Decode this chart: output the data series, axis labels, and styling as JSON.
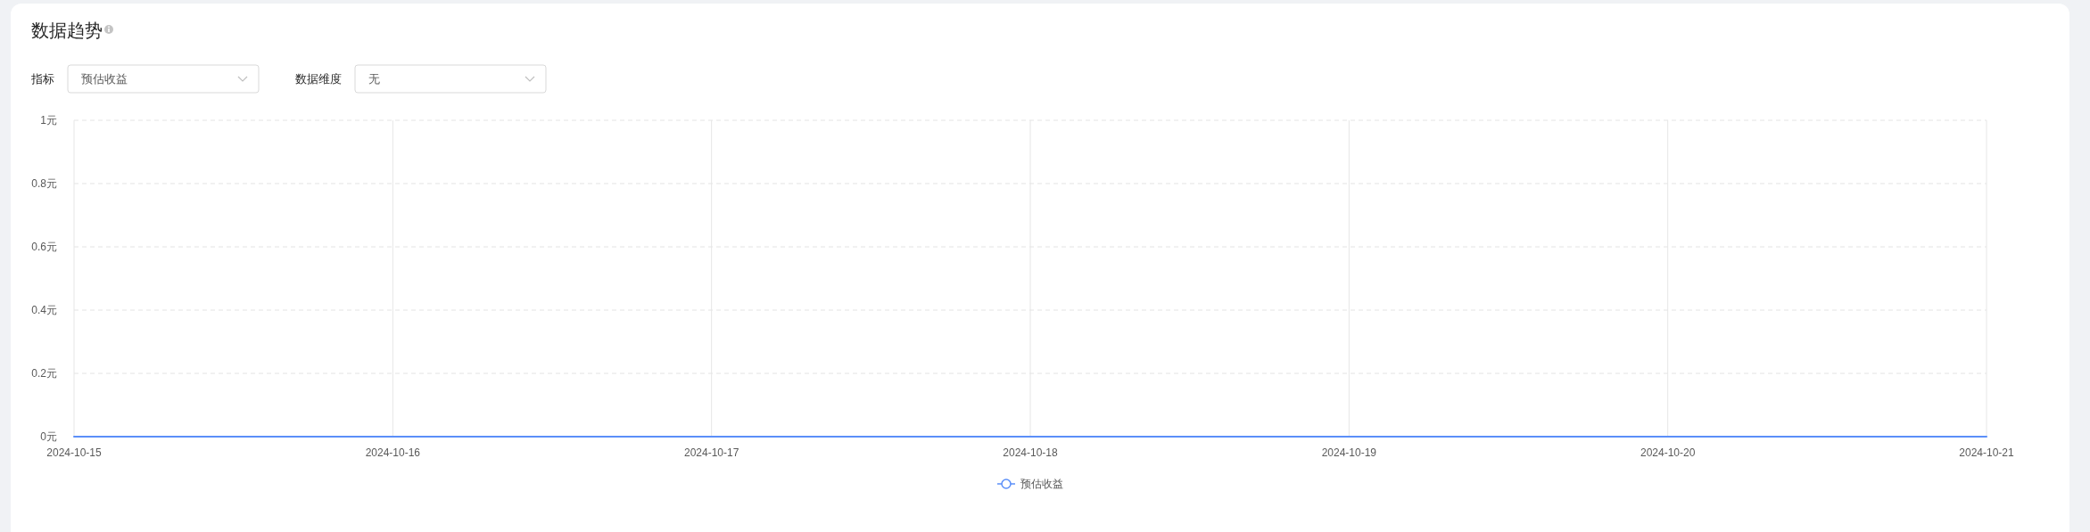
{
  "chart_data": {
    "type": "line",
    "title": "数据趋势",
    "annotations": [
      "指标",
      "预估收益",
      "数据维度",
      "无"
    ],
    "x": [
      "2024-10-15",
      "2024-10-16",
      "2024-10-17",
      "2024-10-18",
      "2024-10-19",
      "2024-10-20",
      "2024-10-21"
    ],
    "series": [
      {
        "name": "预估收益",
        "color": "#5b8ff9",
        "values": [
          0,
          0,
          0,
          0,
          0,
          0,
          0
        ]
      }
    ],
    "xlim": [
      "2024-10-15",
      "2024-10-21"
    ],
    "xticks": [
      "2024-10-15",
      "2024-10-16",
      "2024-10-17",
      "2024-10-18",
      "2024-10-19",
      "2024-10-20",
      "2024-10-21"
    ],
    "ylim": [
      0,
      1
    ],
    "yticks": [
      {
        "value": 0,
        "label": "0元"
      },
      {
        "value": 0.2,
        "label": "0.2元"
      },
      {
        "value": 0.4,
        "label": "0.4元"
      },
      {
        "value": 0.6,
        "label": "0.6元"
      },
      {
        "value": 0.8,
        "label": "0.8元"
      },
      {
        "value": 1,
        "label": "1元"
      }
    ],
    "grid": true,
    "legend": "bottom"
  }
}
